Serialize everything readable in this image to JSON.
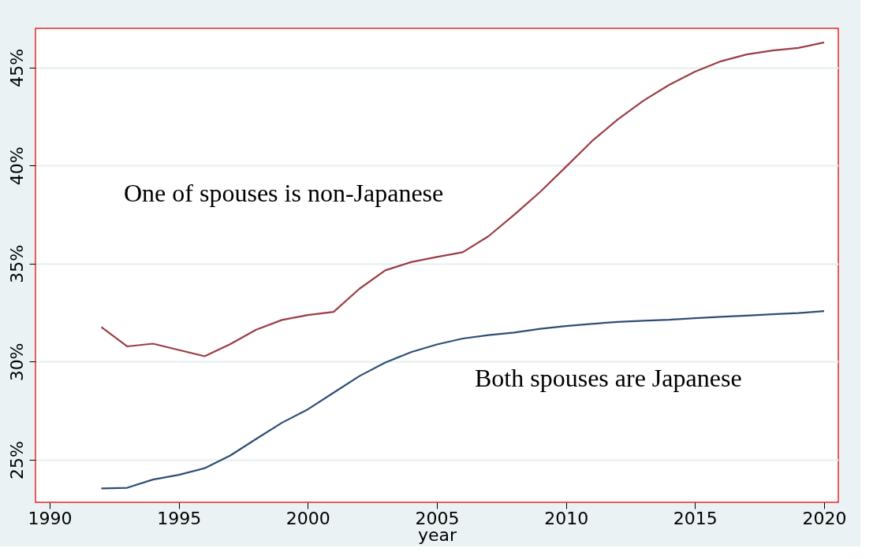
{
  "chart_data": {
    "type": "line",
    "xlabel": "year",
    "x": [
      1992,
      1993,
      1994,
      1995,
      1996,
      1997,
      1998,
      1999,
      2000,
      2001,
      2002,
      2003,
      2004,
      2005,
      2006,
      2007,
      2008,
      2009,
      2010,
      2011,
      2012,
      2013,
      2014,
      2015,
      2016,
      2017,
      2018,
      2019,
      2020
    ],
    "series": [
      {
        "name": "One of spouses is non-Japanese",
        "color": "#9b3d45",
        "values": [
          31.77,
          30.78,
          30.92,
          30.6,
          30.28,
          30.9,
          31.63,
          32.13,
          32.38,
          32.54,
          33.72,
          34.66,
          35.08,
          35.34,
          35.58,
          36.4,
          37.5,
          38.66,
          39.94,
          41.24,
          42.35,
          43.31,
          44.12,
          44.79,
          45.32,
          45.67,
          45.87,
          46.0,
          46.28
        ]
      },
      {
        "name": "Both spouses are Japanese",
        "color": "#2e4e74",
        "values": [
          23.54,
          23.57,
          23.99,
          24.23,
          24.57,
          25.22,
          26.06,
          26.89,
          27.57,
          28.42,
          29.27,
          29.96,
          30.49,
          30.88,
          31.18,
          31.36,
          31.49,
          31.68,
          31.82,
          31.93,
          32.03,
          32.09,
          32.14,
          32.22,
          32.29,
          32.35,
          32.42,
          32.48,
          32.58
        ]
      }
    ],
    "xlim": [
      1989.45,
      2020.55
    ],
    "xticks": [
      1990,
      1995,
      2000,
      2005,
      2010,
      2015,
      2020
    ],
    "ylim": [
      22.83,
      47.0
    ],
    "yticks": [
      {
        "value": 25,
        "label": "25%"
      },
      {
        "value": 30,
        "label": "30%"
      },
      {
        "value": 35,
        "label": "35%"
      },
      {
        "value": 40,
        "label": "40%"
      },
      {
        "value": 45,
        "label": "45%"
      }
    ],
    "grid": "y",
    "line_style": "solid"
  }
}
